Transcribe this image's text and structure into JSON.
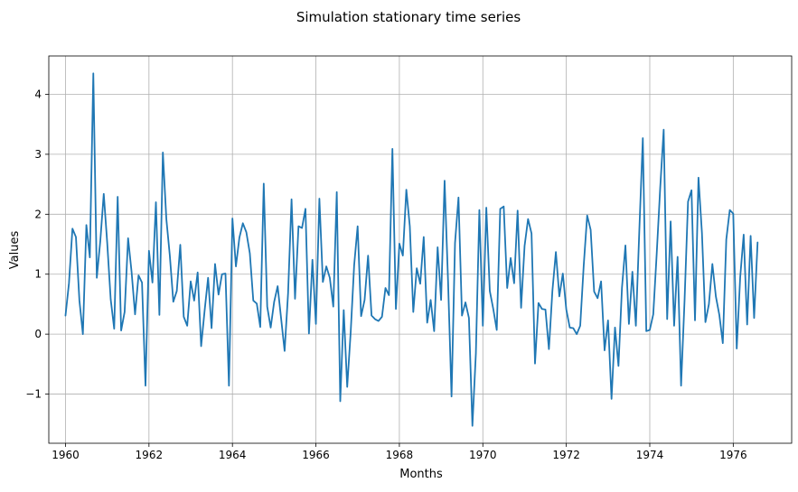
{
  "chart_data": {
    "type": "line",
    "title": "Simulation stationary time series",
    "xlabel": "Months",
    "ylabel": "Values",
    "xlim": [
      1959.6,
      1977.4
    ],
    "ylim": [
      -1.82,
      4.64
    ],
    "grid": true,
    "x_ticks": [
      1960,
      1962,
      1964,
      1966,
      1968,
      1970,
      1972,
      1974,
      1976
    ],
    "x_tick_labels": [
      "1960",
      "1962",
      "1964",
      "1966",
      "1968",
      "1970",
      "1972",
      "1974",
      "1976"
    ],
    "y_ticks": [
      -1,
      0,
      1,
      2,
      3,
      4
    ],
    "y_tick_labels": [
      "−1",
      "0",
      "1",
      "2",
      "3",
      "4"
    ],
    "line_color": "#1f77b4",
    "start_year": 1960,
    "frequency": "monthly",
    "series": [
      {
        "values": [
          0.31,
          0.85,
          1.76,
          1.62,
          0.56,
          0.0,
          1.82,
          1.28,
          4.35,
          0.94,
          1.55,
          2.34,
          1.52,
          0.58,
          0.09,
          2.29,
          0.06,
          0.37,
          1.6,
          1.04,
          0.33,
          0.98,
          0.86,
          -0.86,
          1.39,
          0.86,
          2.2,
          0.32,
          3.03,
          1.92,
          1.31,
          0.54,
          0.72,
          1.49,
          0.29,
          0.14,
          0.88,
          0.56,
          1.03,
          -0.2,
          0.39,
          0.94,
          0.1,
          1.17,
          0.66,
          1.0,
          1.01,
          -0.86,
          1.93,
          1.13,
          1.61,
          1.85,
          1.7,
          1.35,
          0.56,
          0.51,
          0.12,
          2.51,
          0.46,
          0.11,
          0.54,
          0.8,
          0.26,
          -0.28,
          0.68,
          2.25,
          0.59,
          1.8,
          1.77,
          2.09,
          0.01,
          1.24,
          0.17,
          2.26,
          0.87,
          1.13,
          0.94,
          0.46,
          2.37,
          -1.12,
          0.4,
          -0.88,
          0.03,
          1.15,
          1.8,
          0.3,
          0.57,
          1.31,
          0.31,
          0.25,
          0.22,
          0.29,
          0.77,
          0.65,
          3.09,
          0.42,
          1.51,
          1.31,
          2.41,
          1.8,
          0.37,
          1.1,
          0.84,
          1.62,
          0.19,
          0.57,
          0.05,
          1.45,
          0.57,
          2.56,
          0.88,
          -1.04,
          1.52,
          2.28,
          0.31,
          0.53,
          0.27,
          -1.53,
          -0.32,
          2.07,
          0.14,
          2.11,
          0.72,
          0.42,
          0.07,
          2.09,
          2.13,
          0.77,
          1.27,
          0.85,
          2.06,
          0.44,
          1.47,
          1.92,
          1.68,
          -0.49,
          0.52,
          0.42,
          0.41,
          -0.25,
          0.72,
          1.37,
          0.63,
          1.01,
          0.41,
          0.11,
          0.1,
          0.0,
          0.14,
          1.14,
          1.98,
          1.74,
          0.71,
          0.6,
          0.88,
          -0.27,
          0.23,
          -1.08,
          0.11,
          -0.53,
          0.77,
          1.48,
          0.17,
          1.04,
          0.14,
          1.74,
          3.27,
          0.05,
          0.07,
          0.33,
          1.35,
          2.44,
          3.41,
          0.25,
          1.88,
          0.14,
          1.29,
          -0.86,
          0.56,
          2.21,
          2.4,
          0.23,
          2.61,
          1.69,
          0.2,
          0.5,
          1.17,
          0.63,
          0.32,
          -0.15,
          1.58,
          2.07,
          2.01,
          -0.24,
          0.95,
          1.66,
          0.16,
          1.64,
          0.27,
          1.53
        ]
      }
    ]
  }
}
